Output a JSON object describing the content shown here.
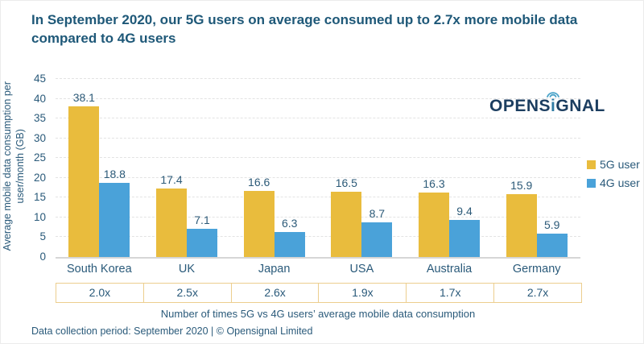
{
  "header": {
    "title": "In September 2020, our 5G users on average consumed up to 2.7x more mobile data compared to 4G users"
  },
  "logo": {
    "name": "Opensignal",
    "text_left": "OPENS",
    "text_i": "i",
    "text_right": "GNAL"
  },
  "colors": {
    "title_blue": "#1e5878",
    "bar_yellow": "#e9bc3d",
    "bar_blue": "#4aa2d9",
    "table_border_gold": "#ecce8e"
  },
  "chart_data": {
    "type": "bar",
    "categories": [
      "South Korea",
      "UK",
      "Japan",
      "USA",
      "Australia",
      "Germany"
    ],
    "series": [
      {
        "name": "5G user",
        "color": "#e9bc3d",
        "values": [
          38.1,
          17.4,
          16.6,
          16.5,
          16.3,
          15.9
        ]
      },
      {
        "name": "4G user",
        "color": "#4aa2d9",
        "values": [
          18.8,
          7.1,
          6.3,
          8.7,
          9.4,
          5.9
        ]
      }
    ],
    "ylabel": "Average mobile data consumption per user/month (GB)",
    "xlabel": "",
    "ylim": [
      0,
      45
    ],
    "ytick_step": 5,
    "grid": true,
    "legend_position": "right",
    "multipliers": [
      "2.0x",
      "2.5x",
      "2.6x",
      "1.9x",
      "1.7x",
      "2.7x"
    ],
    "multiplier_caption": "Number of times 5G vs 4G users’ average mobile data consumption"
  },
  "footer": {
    "text": "Data collection period: September 2020 | © Opensignal Limited"
  }
}
